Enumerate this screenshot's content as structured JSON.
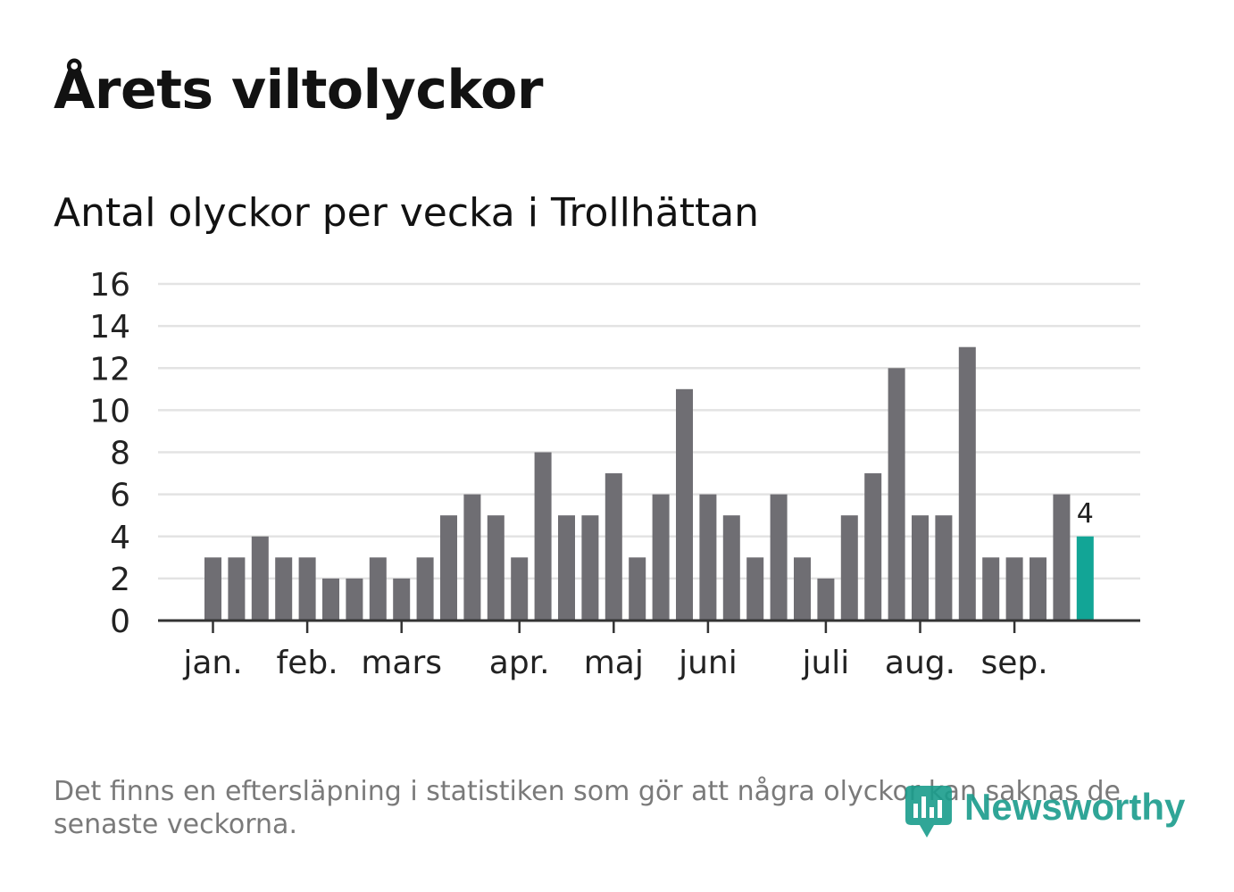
{
  "title": "Årets viltolyckor",
  "subtitle": "Antal olyckor per vecka i Trollhättan",
  "footnote": "Det finns en eftersläpning i statistiken som gör att några olyckor kan saknas de senaste veckorna.",
  "brand": {
    "name": "Newsworthy",
    "color": "#1a9c8c"
  },
  "colors": {
    "bar": "#6f6e73",
    "highlight": "#12a596",
    "grid": "#e3e3e3",
    "axis": "#333333",
    "text": "#222222"
  },
  "chart_data": {
    "type": "bar",
    "title": "Antal olyckor per vecka i Trollhättan",
    "xlabel": "",
    "ylabel": "",
    "ylim": [
      0,
      16
    ],
    "yticks": [
      0,
      2,
      4,
      6,
      8,
      10,
      12,
      14,
      16
    ],
    "grid": true,
    "legend": "none",
    "values": [
      3,
      3,
      4,
      3,
      3,
      2,
      2,
      3,
      2,
      3,
      5,
      6,
      5,
      3,
      8,
      5,
      5,
      7,
      3,
      6,
      11,
      6,
      5,
      3,
      6,
      3,
      2,
      5,
      7,
      12,
      5,
      5,
      13,
      3,
      3,
      3,
      6,
      4
    ],
    "highlight_index": 37,
    "highlight_label": "4",
    "month_ticks": [
      {
        "label": "jan.",
        "week": 0
      },
      {
        "label": "feb.",
        "week": 4
      },
      {
        "label": "mars",
        "week": 8
      },
      {
        "label": "apr.",
        "week": 13
      },
      {
        "label": "maj",
        "week": 17
      },
      {
        "label": "juni",
        "week": 21
      },
      {
        "label": "juli",
        "week": 26
      },
      {
        "label": "aug.",
        "week": 30
      },
      {
        "label": "sep.",
        "week": 34
      }
    ]
  }
}
